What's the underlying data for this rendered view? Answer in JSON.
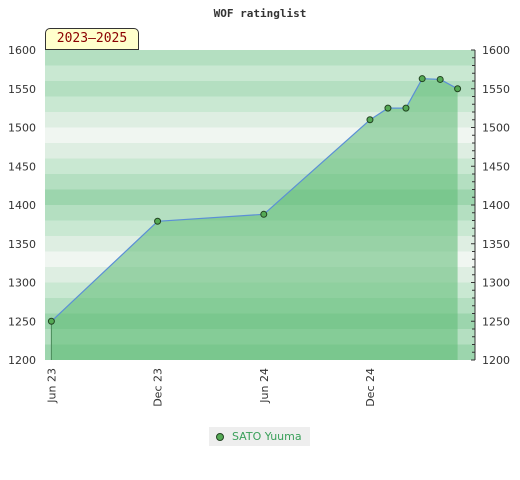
{
  "header": {
    "title": "WOF ratinglist"
  },
  "badge": {
    "label": "2023–2025"
  },
  "legend": {
    "series_name": "SATO Yuuma"
  },
  "colors": {
    "area_fill": "#5fbb74",
    "line": "#5b8fd6",
    "marker": "#55aa55",
    "badge_text": "#8b0000",
    "legend_text": "#3aa05a"
  },
  "chart_data": {
    "type": "area",
    "title": "WOF ratinglist",
    "xlabel": "",
    "ylabel": "",
    "ylim": [
      1200,
      1600
    ],
    "yticks": [
      1200,
      1250,
      1300,
      1350,
      1400,
      1450,
      1500,
      1550,
      1600
    ],
    "xticks": [
      "Jun 23",
      "Dec 23",
      "Jun 24",
      "Dec 24"
    ],
    "xlim": [
      "2023-05-21",
      "2025-05-31"
    ],
    "grid": true,
    "legend_position": "bottom",
    "series": [
      {
        "name": "SATO Yuuma",
        "x": [
          "2023-06-01",
          "2023-12-01",
          "2024-06-01",
          "2024-12-01",
          "2025-01-01",
          "2025-02-01",
          "2025-03-01",
          "2025-04-01",
          "2025-05-01"
        ],
        "y": [
          1250,
          1379,
          1388,
          1510,
          1525,
          1525,
          1563,
          1562,
          1550
        ]
      }
    ]
  }
}
